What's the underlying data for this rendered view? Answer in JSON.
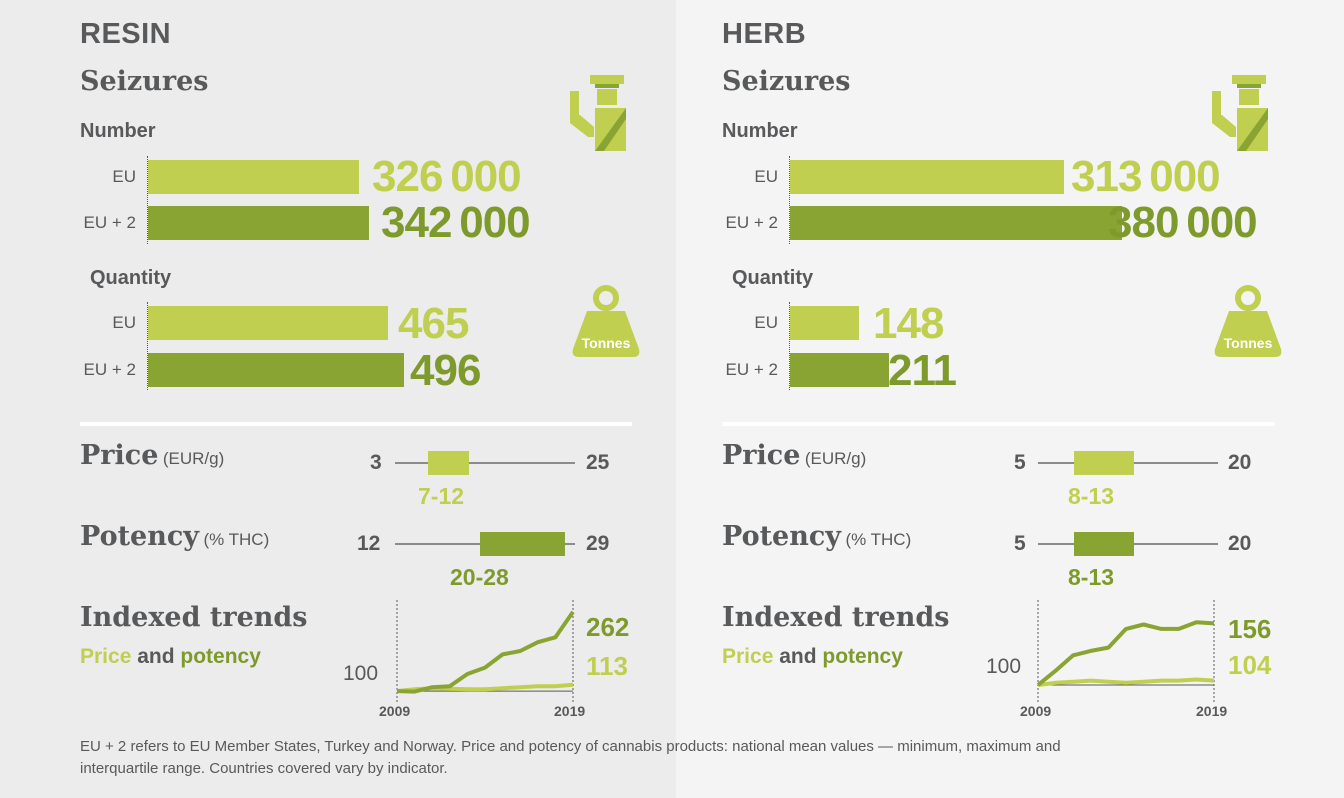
{
  "footnote": "EU + 2 refers to EU Member States, Turkey and Norway. Price and potency of cannabis products: national mean values — minimum, maximum and interquartile range. Countries covered vary by indicator.",
  "colors": {
    "light_green": "#c0cf4f",
    "dark_green": "#8aa434",
    "text_grey": "#58595b"
  },
  "icons": {
    "seizure": "customs-officer-icon",
    "weight": "weight-icon"
  },
  "panels": [
    {
      "title": "RESIN",
      "seizures_heading": "Seizures",
      "number_label": "Number",
      "quantity_label": "Quantity",
      "tonnes_label": "Tonnes",
      "number_rows": [
        {
          "label": "EU",
          "display": "326 000"
        },
        {
          "label": "EU + 2",
          "display": "342 000"
        }
      ],
      "quantity_rows": [
        {
          "label": "EU",
          "display": "465"
        },
        {
          "label": "EU + 2",
          "display": "496"
        }
      ],
      "price": {
        "title": "Price",
        "unit": "(EUR/g)",
        "min_label": "3",
        "max_label": "25",
        "iqr_label": "7-12"
      },
      "potency": {
        "title": "Potency",
        "unit": "(% THC)",
        "min_label": "12",
        "max_label": "29",
        "iqr_label": "20-28"
      },
      "trends": {
        "title": "Indexed trends",
        "word_price": "Price",
        "word_and": "and",
        "word_potency": "potency",
        "base_label": "100",
        "start_year": "2009",
        "end_year": "2019",
        "price_end_label": "113",
        "potency_end_label": "262"
      }
    },
    {
      "title": "HERB",
      "seizures_heading": "Seizures",
      "number_label": "Number",
      "quantity_label": "Quantity",
      "tonnes_label": "Tonnes",
      "number_rows": [
        {
          "label": "EU",
          "display": "313 000"
        },
        {
          "label": "EU + 2",
          "display": "380 000"
        }
      ],
      "quantity_rows": [
        {
          "label": "EU",
          "display": "148"
        },
        {
          "label": "EU + 2",
          "display": "211"
        }
      ],
      "price": {
        "title": "Price",
        "unit": "(EUR/g)",
        "min_label": "5",
        "max_label": "20",
        "iqr_label": "8-13"
      },
      "potency": {
        "title": "Potency",
        "unit": "(% THC)",
        "min_label": "5",
        "max_label": "20",
        "iqr_label": "8-13"
      },
      "trends": {
        "title": "Indexed trends",
        "word_price": "Price",
        "word_and": "and",
        "word_potency": "potency",
        "base_label": "100",
        "start_year": "2009",
        "end_year": "2019",
        "price_end_label": "104",
        "potency_end_label": "156"
      }
    }
  ],
  "chart_data": [
    {
      "type": "bar",
      "title": "RESIN",
      "subtitle": "Seizures",
      "groups": [
        {
          "name": "Number",
          "categories": [
            "EU",
            "EU + 2"
          ],
          "values": [
            326000,
            342000
          ]
        },
        {
          "name": "Quantity",
          "unit": "Tonnes",
          "categories": [
            "EU",
            "EU + 2"
          ],
          "values": [
            465,
            496
          ]
        }
      ]
    },
    {
      "type": "bar",
      "title": "HERB",
      "subtitle": "Seizures",
      "groups": [
        {
          "name": "Number",
          "categories": [
            "EU",
            "EU + 2"
          ],
          "values": [
            313000,
            380000
          ]
        },
        {
          "name": "Quantity",
          "unit": "Tonnes",
          "categories": [
            "EU",
            "EU + 2"
          ],
          "values": [
            148,
            211
          ]
        }
      ]
    },
    {
      "type": "range",
      "title": "RESIN",
      "series": [
        {
          "name": "Price",
          "unit": "EUR/g",
          "min": 3,
          "max": 25,
          "q1": 7,
          "q3": 12
        },
        {
          "name": "Potency",
          "unit": "% THC",
          "min": 12,
          "max": 29,
          "q1": 20,
          "q3": 28
        }
      ]
    },
    {
      "type": "range",
      "title": "HERB",
      "series": [
        {
          "name": "Price",
          "unit": "EUR/g",
          "min": 5,
          "max": 20,
          "q1": 8,
          "q3": 13
        },
        {
          "name": "Potency",
          "unit": "% THC",
          "min": 5,
          "max": 20,
          "q1": 8,
          "q3": 13
        }
      ]
    },
    {
      "type": "line",
      "title": "RESIN",
      "subtitle": "Indexed trends",
      "x": [
        2009,
        2010,
        2011,
        2012,
        2013,
        2014,
        2015,
        2016,
        2017,
        2018,
        2019
      ],
      "ylim": [
        90,
        270
      ],
      "series": [
        {
          "name": "Price",
          "values": [
            100,
            104,
            106,
            105,
            104,
            104,
            106,
            108,
            110,
            110,
            113
          ]
        },
        {
          "name": "potency",
          "values": [
            100,
            99,
            108,
            110,
            135,
            148,
            175,
            182,
            200,
            210,
            262
          ]
        }
      ]
    },
    {
      "type": "line",
      "title": "HERB",
      "subtitle": "Indexed trends",
      "x": [
        2009,
        2010,
        2011,
        2012,
        2013,
        2014,
        2015,
        2016,
        2017,
        2018,
        2019
      ],
      "ylim": [
        90,
        170
      ],
      "series": [
        {
          "name": "Price",
          "values": [
            100,
            102,
            103,
            104,
            103,
            102,
            103,
            104,
            104,
            105,
            104
          ]
        },
        {
          "name": "potency",
          "values": [
            100,
            113,
            127,
            131,
            134,
            151,
            155,
            151,
            151,
            157,
            156
          ]
        }
      ]
    }
  ]
}
